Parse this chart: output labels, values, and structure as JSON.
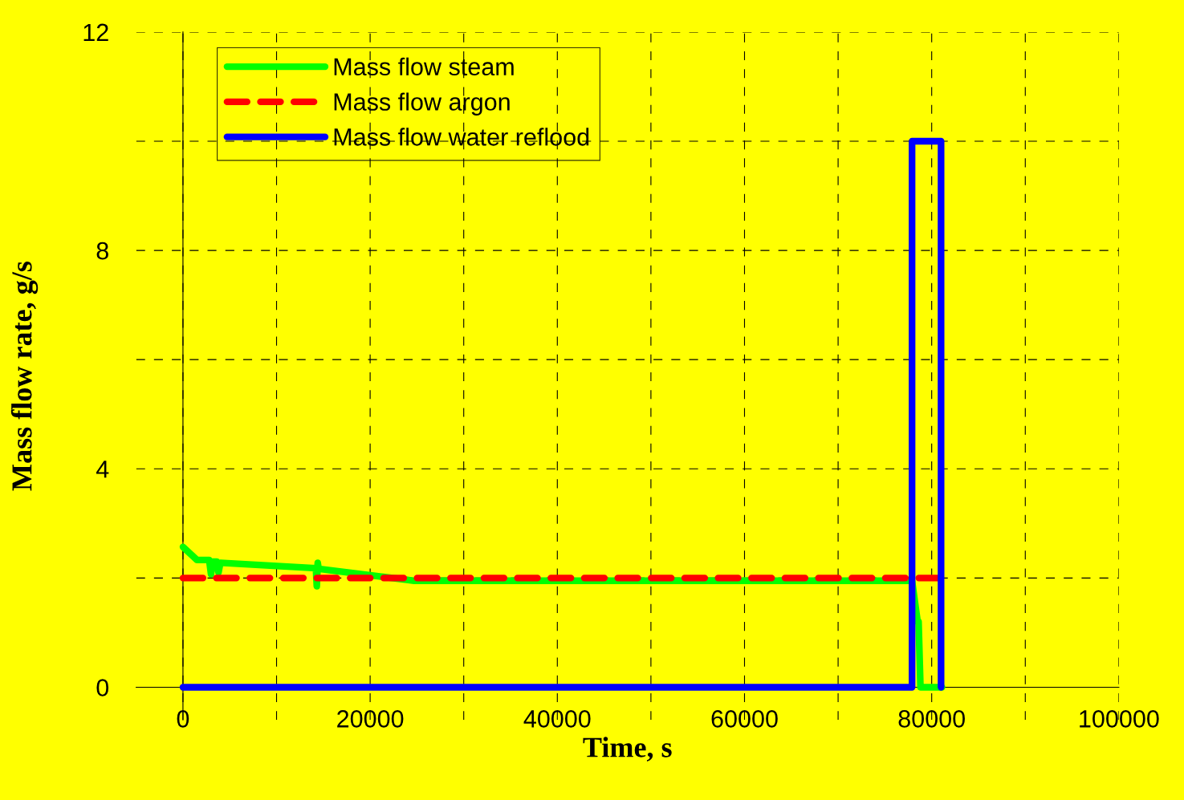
{
  "chart_data": {
    "type": "line",
    "xlabel": "Time, s",
    "ylabel": "Mass flow rate, g/s",
    "xlim": [
      -5000,
      100000
    ],
    "ylim": [
      -0.6,
      12
    ],
    "xticks": [
      0,
      {
        "value": 10000,
        "label": null
      },
      20000,
      {
        "value": 30000,
        "label": null
      },
      40000,
      {
        "value": 50000,
        "label": null
      },
      60000,
      {
        "value": 70000,
        "label": null
      },
      80000,
      {
        "value": 90000,
        "label": null
      },
      100000
    ],
    "yticks": [
      0,
      {
        "value": 2,
        "label": null
      },
      4,
      {
        "value": 6,
        "label": null
      },
      8,
      {
        "value": 10,
        "label": null
      },
      12
    ],
    "grid": true,
    "legend": "top left",
    "series": [
      {
        "name": "Mass flow steam",
        "color": "#00ff00",
        "line_style": "solid",
        "x": [
          0,
          1500,
          2800,
          3000,
          3200,
          3600,
          3800,
          4000,
          14200,
          14300,
          14400,
          14500,
          24700,
          77900,
          78500,
          78600,
          78800,
          81100
        ],
        "values": [
          2.57,
          2.33,
          2.33,
          2.07,
          2.3,
          2.3,
          2.1,
          2.28,
          2.18,
          1.85,
          2.28,
          2.17,
          1.95,
          1.95,
          1.2,
          1.2,
          0,
          0
        ]
      },
      {
        "name": "Mass flow argon",
        "color": "#ff0000",
        "line_style": "dashed",
        "x": [
          0,
          81000
        ],
        "values": [
          2,
          2
        ]
      },
      {
        "name": "Mass flow water reflood",
        "color": "#0000ff",
        "line_style": "solid",
        "x": [
          0,
          77900,
          77900,
          81000,
          81000
        ],
        "values": [
          0,
          0,
          10,
          10,
          0
        ]
      }
    ]
  }
}
